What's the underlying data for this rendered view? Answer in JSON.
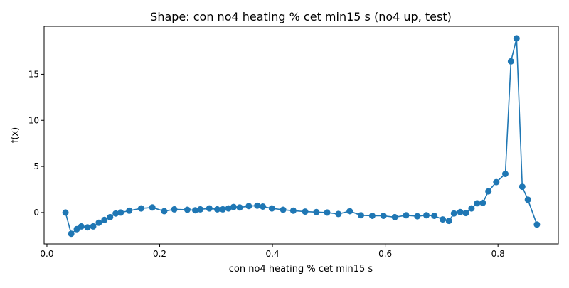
{
  "chart_data": {
    "type": "line",
    "title": "Shape: con no4 heating % cet min15 s (no4 up, test)",
    "xlabel": "con no4 heating % cet min15 s",
    "ylabel": "f(x)",
    "xlim": [
      -0.005,
      0.907
    ],
    "ylim": [
      -3.4,
      20.2
    ],
    "xticks": [
      0.0,
      0.2,
      0.4,
      0.6,
      0.8
    ],
    "xtick_labels": [
      "0.0",
      "0.2",
      "0.4",
      "0.6",
      "0.8"
    ],
    "yticks": [
      0,
      5,
      10,
      15
    ],
    "ytick_labels": [
      "0",
      "5",
      "10",
      "15"
    ],
    "grid": false,
    "legend": false,
    "color": "#1f77b4",
    "x": [
      0.033,
      0.043,
      0.053,
      0.061,
      0.072,
      0.082,
      0.092,
      0.102,
      0.112,
      0.122,
      0.131,
      0.146,
      0.167,
      0.187,
      0.208,
      0.226,
      0.249,
      0.263,
      0.272,
      0.288,
      0.302,
      0.312,
      0.322,
      0.331,
      0.342,
      0.358,
      0.373,
      0.383,
      0.399,
      0.419,
      0.437,
      0.458,
      0.478,
      0.497,
      0.517,
      0.537,
      0.557,
      0.577,
      0.597,
      0.617,
      0.637,
      0.657,
      0.673,
      0.687,
      0.702,
      0.713,
      0.722,
      0.733,
      0.743,
      0.753,
      0.763,
      0.773,
      0.783,
      0.797,
      0.813,
      0.823,
      0.833,
      0.843,
      0.853,
      0.869
    ],
    "y": [
      0.0,
      -2.3,
      -1.8,
      -1.5,
      -1.6,
      -1.5,
      -1.1,
      -0.8,
      -0.5,
      -0.1,
      0.0,
      0.2,
      0.45,
      0.55,
      0.15,
      0.35,
      0.3,
      0.25,
      0.35,
      0.45,
      0.35,
      0.35,
      0.45,
      0.6,
      0.55,
      0.7,
      0.75,
      0.65,
      0.45,
      0.3,
      0.2,
      0.1,
      0.05,
      0.0,
      -0.15,
      0.15,
      -0.3,
      -0.35,
      -0.35,
      -0.5,
      -0.3,
      -0.4,
      -0.3,
      -0.35,
      -0.75,
      -0.9,
      -0.1,
      0.05,
      -0.05,
      0.45,
      1.0,
      1.05,
      2.3,
      3.3,
      4.2,
      16.4,
      18.9,
      2.8,
      1.4,
      -1.3
    ]
  }
}
